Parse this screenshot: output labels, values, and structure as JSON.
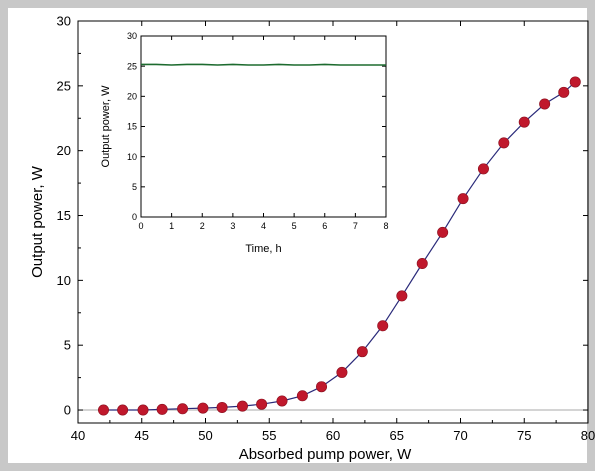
{
  "chart_data": [
    {
      "type": "line",
      "title": "",
      "xlabel": "Absorbed pump power, W",
      "ylabel": "Output power, W",
      "xlim": [
        40,
        80
      ],
      "ylim": [
        -1,
        30
      ],
      "xticks": [
        40,
        45,
        50,
        55,
        60,
        65,
        70,
        75,
        80
      ],
      "yticks": [
        0,
        5,
        10,
        15,
        20,
        25,
        30
      ],
      "grid": false,
      "baseline": 0,
      "colors": {
        "line": "#2a2a7a",
        "marker": "#c0182c",
        "baseline": "#aaaaaa"
      },
      "series": [
        {
          "x": [
            42.0,
            43.5,
            45.1,
            46.6,
            48.2,
            49.8,
            51.3,
            52.9,
            54.4,
            56.0,
            57.6,
            59.1,
            60.7,
            62.3,
            63.9,
            65.4,
            67.0,
            68.6,
            70.2,
            71.8,
            73.4,
            75.0,
            76.6,
            78.1,
            79.0
          ],
          "y": [
            0.0,
            0.0,
            0.0,
            0.05,
            0.1,
            0.15,
            0.2,
            0.3,
            0.45,
            0.7,
            1.1,
            1.8,
            2.9,
            4.5,
            6.5,
            8.8,
            11.3,
            13.7,
            16.3,
            18.6,
            20.6,
            22.2,
            23.6,
            24.5,
            25.3
          ]
        }
      ]
    },
    {
      "type": "line",
      "title": "",
      "xlabel": "Time, h",
      "ylabel": "Output power, W",
      "xlim": [
        0,
        8
      ],
      "ylim": [
        0,
        30
      ],
      "xticks": [
        0,
        1,
        2,
        3,
        4,
        5,
        6,
        7,
        8
      ],
      "yticks": [
        0,
        5,
        10,
        15,
        20,
        25,
        30
      ],
      "grid": false,
      "colors": {
        "line": "#1d6b2f"
      },
      "series": [
        {
          "x": [
            0,
            0.5,
            1,
            1.5,
            2,
            2.5,
            3,
            3.5,
            4,
            4.5,
            5,
            5.5,
            6,
            6.5,
            7,
            7.5,
            8
          ],
          "y": [
            25.3,
            25.3,
            25.2,
            25.3,
            25.3,
            25.2,
            25.3,
            25.2,
            25.2,
            25.3,
            25.2,
            25.2,
            25.3,
            25.2,
            25.2,
            25.2,
            25.2
          ]
        }
      ]
    }
  ]
}
